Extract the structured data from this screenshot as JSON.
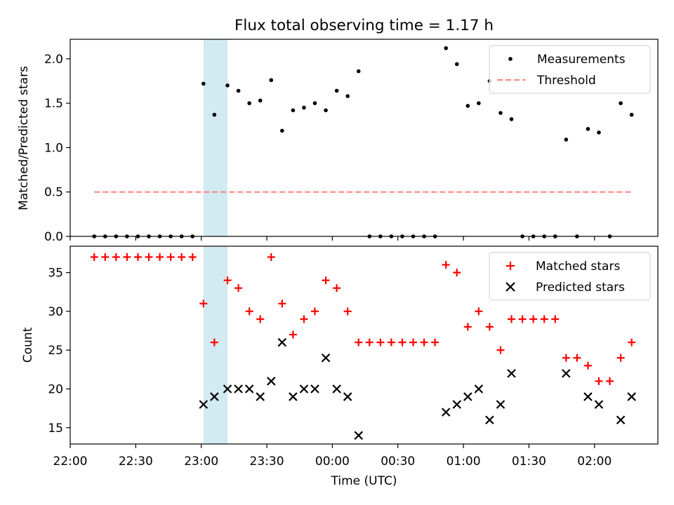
{
  "title": "Flux total observing time = 1.17 h",
  "colors": {
    "measurements": "#000000",
    "threshold": "#ff7f7f",
    "matched": "#ff0000",
    "predicted": "#000000",
    "highlight": "#add8e6"
  },
  "chart_data": [
    {
      "type": "scatter",
      "ylabel": "Matched/Predicted stars",
      "xlabel": "",
      "ylim": [
        0,
        2.22
      ],
      "yticks": [
        0,
        0.5,
        1.0,
        1.5,
        2.0
      ],
      "ytick_labels": [
        "0.0",
        "0.5",
        "1.0",
        "1.5",
        "2.0"
      ],
      "highlight_span": [
        "23:01",
        "23:12 + 1d"
      ],
      "legend_position": "top-right",
      "series": [
        {
          "name": "Measurements",
          "marker": "dot",
          "points": [
            [
              "22:11",
              0
            ],
            [
              "22:16",
              0
            ],
            [
              "22:21",
              0
            ],
            [
              "22:26",
              0
            ],
            [
              "22:31",
              0
            ],
            [
              "22:36",
              0
            ],
            [
              "22:41",
              0
            ],
            [
              "22:46",
              0
            ],
            [
              "22:51",
              0
            ],
            [
              "22:56",
              0
            ],
            [
              "23:01",
              1.72
            ],
            [
              "23:06",
              1.37
            ],
            [
              "23:12",
              1.7
            ],
            [
              "23:17",
              1.64
            ],
            [
              "23:22",
              1.5
            ],
            [
              "23:27",
              1.53
            ],
            [
              "23:32",
              1.76
            ],
            [
              "23:37",
              1.19
            ],
            [
              "23:42",
              1.42
            ],
            [
              "23:47",
              1.45
            ],
            [
              "23:52",
              1.5
            ],
            [
              "23:57",
              1.42
            ],
            [
              "00:02",
              1.64
            ],
            [
              "00:07",
              1.58
            ],
            [
              "00:12",
              1.86
            ],
            [
              "00:17",
              0
            ],
            [
              "00:22",
              0
            ],
            [
              "00:27",
              0
            ],
            [
              "00:32",
              0
            ],
            [
              "00:37",
              0
            ],
            [
              "00:42",
              0
            ],
            [
              "00:47",
              0
            ],
            [
              "00:52",
              2.12
            ],
            [
              "00:57",
              1.94
            ],
            [
              "01:02",
              1.47
            ],
            [
              "01:07",
              1.5
            ],
            [
              "01:12",
              1.75
            ],
            [
              "01:17",
              1.39
            ],
            [
              "01:22",
              1.32
            ],
            [
              "01:27",
              0
            ],
            [
              "01:32",
              0
            ],
            [
              "01:37",
              0
            ],
            [
              "01:42",
              0
            ],
            [
              "01:47",
              1.09
            ],
            [
              "01:52",
              0
            ],
            [
              "01:57",
              1.21
            ],
            [
              "02:02",
              1.17
            ],
            [
              "02:07",
              0
            ],
            [
              "02:12",
              1.5
            ],
            [
              "02:17",
              1.37
            ]
          ]
        },
        {
          "name": "Threshold",
          "style": "dashed",
          "x_range": [
            "22:11",
            "02:17"
          ],
          "value": 0.5
        }
      ]
    },
    {
      "type": "scatter",
      "ylabel": "Count",
      "xlabel": "Time (UTC)",
      "ylim": [
        12.9,
        38.4
      ],
      "yticks": [
        15,
        20,
        25,
        30,
        35
      ],
      "ytick_labels": [
        "15",
        "20",
        "25",
        "30",
        "35"
      ],
      "x_axis_start": "22:00",
      "x_axis_end": "02:29",
      "xticks": [
        "22:00",
        "22:30",
        "23:00",
        "23:30",
        "00:00",
        "00:30",
        "01:00",
        "01:30",
        "02:00"
      ],
      "highlight_span": [
        "23:01",
        "23:12 + 1d"
      ],
      "legend_position": "top-right",
      "series": [
        {
          "name": "Matched stars",
          "marker": "plus",
          "points": [
            [
              "22:11",
              37
            ],
            [
              "22:16",
              37
            ],
            [
              "22:21",
              37
            ],
            [
              "22:26",
              37
            ],
            [
              "22:31",
              37
            ],
            [
              "22:36",
              37
            ],
            [
              "22:41",
              37
            ],
            [
              "22:46",
              37
            ],
            [
              "22:51",
              37
            ],
            [
              "22:56",
              37
            ],
            [
              "23:01",
              31
            ],
            [
              "23:06",
              26
            ],
            [
              "23:12",
              34
            ],
            [
              "23:17",
              33
            ],
            [
              "23:22",
              30
            ],
            [
              "23:27",
              29
            ],
            [
              "23:32",
              37
            ],
            [
              "23:37",
              31
            ],
            [
              "23:42",
              27
            ],
            [
              "23:47",
              29
            ],
            [
              "23:52",
              30
            ],
            [
              "23:57",
              34
            ],
            [
              "00:02",
              33
            ],
            [
              "00:07",
              30
            ],
            [
              "00:12",
              26
            ],
            [
              "00:17",
              26
            ],
            [
              "00:22",
              26
            ],
            [
              "00:27",
              26
            ],
            [
              "00:32",
              26
            ],
            [
              "00:37",
              26
            ],
            [
              "00:42",
              26
            ],
            [
              "00:47",
              26
            ],
            [
              "00:52",
              36
            ],
            [
              "00:57",
              35
            ],
            [
              "01:02",
              28
            ],
            [
              "01:07",
              30
            ],
            [
              "01:12",
              28
            ],
            [
              "01:17",
              25
            ],
            [
              "01:22",
              29
            ],
            [
              "01:27",
              29
            ],
            [
              "01:32",
              29
            ],
            [
              "01:37",
              29
            ],
            [
              "01:42",
              29
            ],
            [
              "01:47",
              24
            ],
            [
              "01:52",
              24
            ],
            [
              "01:57",
              23
            ],
            [
              "02:02",
              21
            ],
            [
              "02:07",
              21
            ],
            [
              "02:12",
              24
            ],
            [
              "02:17",
              26
            ]
          ]
        },
        {
          "name": "Predicted stars",
          "marker": "x",
          "points": [
            [
              "23:01",
              18
            ],
            [
              "23:06",
              19
            ],
            [
              "23:12",
              20
            ],
            [
              "23:17",
              20
            ],
            [
              "23:22",
              20
            ],
            [
              "23:27",
              19
            ],
            [
              "23:32",
              21
            ],
            [
              "23:37",
              26
            ],
            [
              "23:42",
              19
            ],
            [
              "23:47",
              20
            ],
            [
              "23:52",
              20
            ],
            [
              "23:57",
              24
            ],
            [
              "00:02",
              20
            ],
            [
              "00:07",
              19
            ],
            [
              "00:12",
              14
            ],
            [
              "00:52",
              17
            ],
            [
              "00:57",
              18
            ],
            [
              "01:02",
              19
            ],
            [
              "01:07",
              20
            ],
            [
              "01:12",
              16
            ],
            [
              "01:17",
              18
            ],
            [
              "01:22",
              22
            ],
            [
              "01:47",
              22
            ],
            [
              "01:57",
              19
            ],
            [
              "02:02",
              18
            ],
            [
              "02:12",
              16
            ],
            [
              "02:17",
              19
            ]
          ]
        }
      ]
    }
  ]
}
